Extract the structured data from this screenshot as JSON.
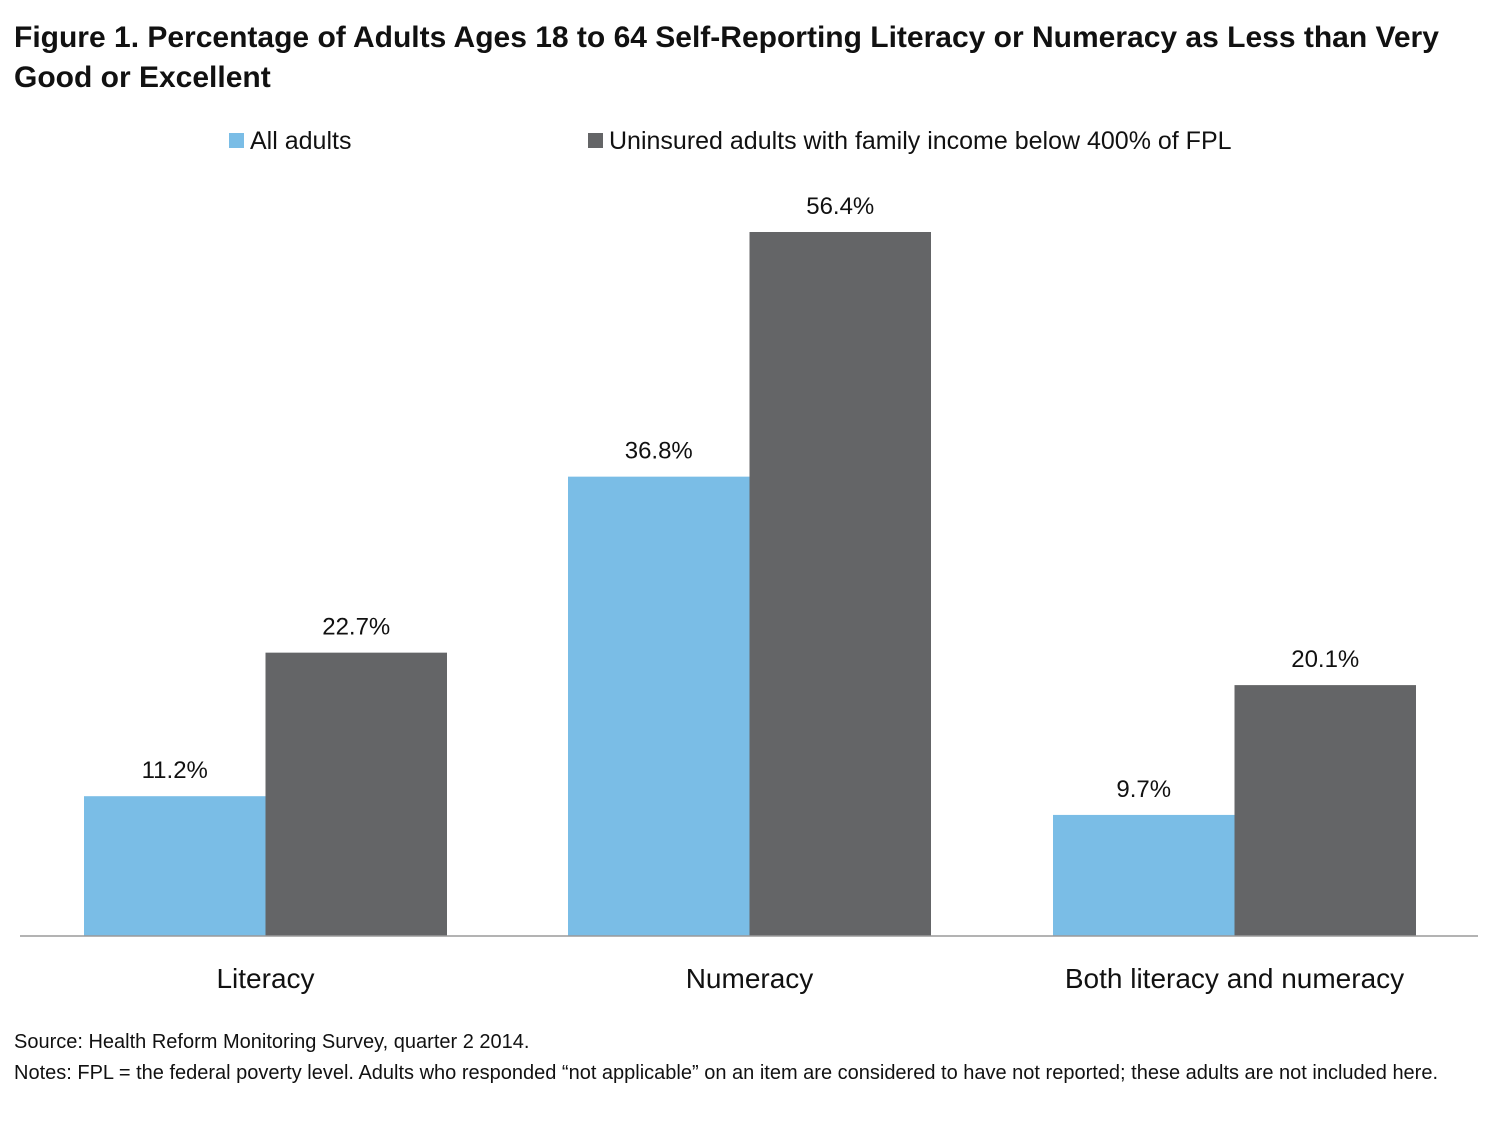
{
  "chart_data": {
    "type": "bar",
    "title": "Figure 1. Percentage of Adults Ages 18 to 64 Self-Reporting Literacy or Numeracy as Less than Very Good or Excellent",
    "categories": [
      "Literacy",
      "Numeracy",
      "Both literacy and numeracy"
    ],
    "series": [
      {
        "name": "All adults",
        "values": [
          11.2,
          36.8,
          9.7
        ],
        "labels": [
          "11.2%",
          "36.8%",
          "9.7%"
        ],
        "color": "#7abde6"
      },
      {
        "name": "Uninsured adults with family income below 400% of FPL",
        "values": [
          22.7,
          56.4,
          20.1
        ],
        "labels": [
          "22.7%",
          "56.4%",
          "20.1%"
        ],
        "color": "#646567"
      }
    ],
    "ylim": [
      0,
      60
    ],
    "grid": false,
    "legend": "top"
  },
  "footer": {
    "source": "Source: Health Reform Monitoring Survey, quarter 2 2014.",
    "notes": "Notes:  FPL = the federal poverty level.  Adults who responded “not applicable” on an item are considered to have not reported; these adults are not included here."
  }
}
